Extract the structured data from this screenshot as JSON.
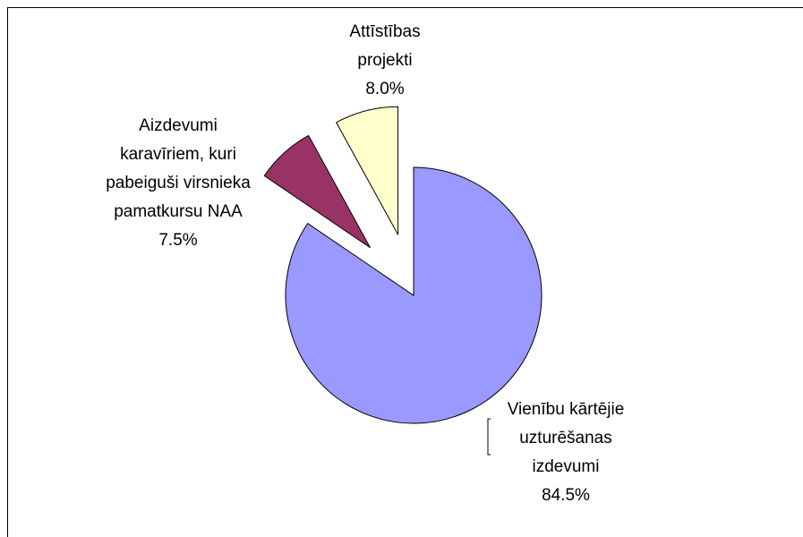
{
  "chart_data": {
    "type": "pie",
    "categories": [
      "Vienību kārtējie uzturēšanas izdevumi",
      "Aizdevumi karavīriem, kuri pabeiguši virsnieka pamatkursu NAA",
      "Attīstības projekti"
    ],
    "values": [
      84.5,
      7.5,
      8.0
    ],
    "value_labels": [
      "84.5%",
      "7.5%",
      "8.0%"
    ],
    "colors": [
      "#9999ff",
      "#993366",
      "#ffffcc"
    ]
  }
}
